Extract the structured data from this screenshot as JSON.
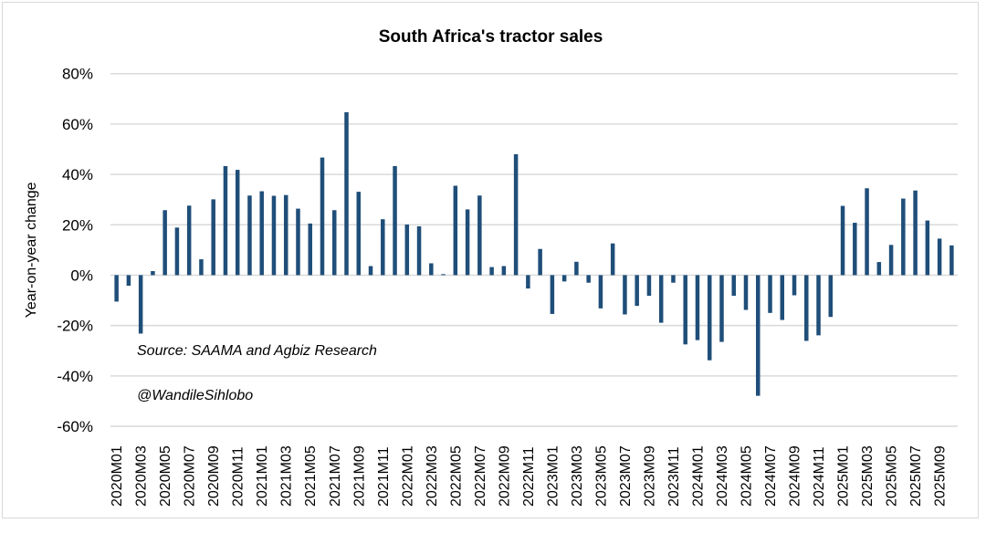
{
  "chart_data": {
    "type": "bar",
    "title": "South Africa's tractor sales",
    "ylabel": "Year-on-year change",
    "xlabel": "",
    "ylim": [
      -60,
      80
    ],
    "yticks": [
      80,
      60,
      40,
      20,
      0,
      -20,
      -40,
      -60
    ],
    "ytick_format": "%",
    "grid": true,
    "legend": "none",
    "bar_color": "#1f4e79",
    "categories": [
      "2020M01",
      "2020M02",
      "2020M03",
      "2020M04",
      "2020M05",
      "2020M06",
      "2020M07",
      "2020M08",
      "2020M09",
      "2020M10",
      "2020M11",
      "2020M12",
      "2021M01",
      "2021M02",
      "2021M03",
      "2021M04",
      "2021M05",
      "2021M06",
      "2021M07",
      "2021M08",
      "2021M09",
      "2021M10",
      "2021M11",
      "2021M12",
      "2022M01",
      "2022M02",
      "2022M03",
      "2022M04",
      "2022M05",
      "2022M06",
      "2022M07",
      "2022M08",
      "2022M09",
      "2022M10",
      "2022M11",
      "2022M12",
      "2023M01",
      "2023M02",
      "2023M03",
      "2023M04",
      "2023M05",
      "2023M06",
      "2023M07",
      "2023M08",
      "2023M09",
      "2023M10",
      "2023M11",
      "2023M12",
      "2024M01",
      "2024M02",
      "2024M03",
      "2024M04",
      "2024M05",
      "2024M06",
      "2024M07",
      "2024M08",
      "2024M09",
      "2024M10",
      "2024M11",
      "2024M12",
      "2025M01",
      "2025M02",
      "2025M03",
      "2025M04",
      "2025M05",
      "2025M06",
      "2025M07",
      "2025M08",
      "2025M09",
      "2025M10"
    ],
    "values": [
      -10.5,
      -4.2,
      -23.2,
      1.6,
      25.8,
      18.9,
      27.6,
      6.3,
      30.1,
      43.3,
      41.8,
      31.6,
      33.3,
      31.5,
      31.8,
      26.4,
      20.5,
      46.7,
      25.8,
      64.7,
      33.1,
      3.6,
      22.2,
      43.3,
      20.1,
      19.4,
      4.7,
      0.4,
      35.5,
      26.1,
      31.6,
      3.2,
      3.6,
      48.0,
      -5.3,
      10.4,
      -15.4,
      -2.5,
      5.3,
      -3.0,
      -13.2,
      12.6,
      -15.6,
      -12.2,
      -8.2,
      -18.9,
      -3.0,
      -27.5,
      -25.8,
      -33.8,
      -26.5,
      -8.2,
      -13.8,
      -47.9,
      -15.0,
      -17.8,
      -8.0,
      -26.1,
      -23.9,
      -16.6,
      27.5,
      20.8,
      34.5,
      5.2,
      12.0,
      30.4,
      33.6,
      21.7,
      14.5,
      11.8
    ],
    "annotations": [
      "Source: SAAMA and Agbiz Research",
      "@WandileSihlobo"
    ]
  }
}
